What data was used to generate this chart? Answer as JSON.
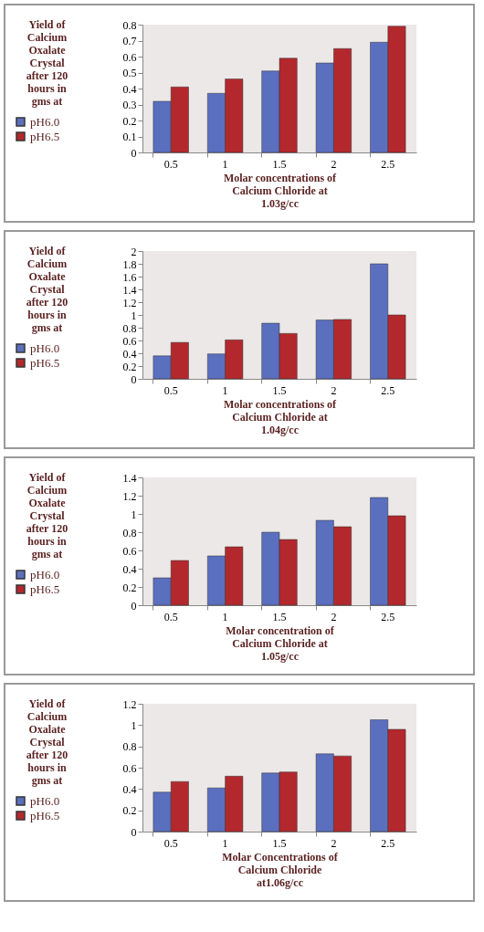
{
  "chart_data": [
    {
      "type": "bar",
      "ylabel": "Yield of Calcium Oxalate Crystal after 120 hours in gms at",
      "xlabel": "Molar concentrations of Calcium Chloride at 1.03g/cc",
      "categories": [
        "0.5",
        "1",
        "1.5",
        "2",
        "2.5"
      ],
      "ylim": [
        0,
        0.8
      ],
      "yticks": [
        0,
        0.1,
        0.2,
        0.3,
        0.4,
        0.5,
        0.6,
        0.7,
        0.8
      ],
      "legend": "left",
      "series": [
        {
          "name": "pH6.0",
          "color": "#5b6fbf",
          "values": [
            0.32,
            0.37,
            0.51,
            0.56,
            0.69
          ]
        },
        {
          "name": "pH6.5",
          "color": "#b3282d",
          "values": [
            0.41,
            0.46,
            0.59,
            0.65,
            0.79
          ]
        }
      ]
    },
    {
      "type": "bar",
      "ylabel": "Yield of Calcium Oxalate Crystal after 120 hours in gms at",
      "xlabel": "Molar concentrations of Calcium Chloride at 1.04g/cc",
      "categories": [
        "0.5",
        "1",
        "1.5",
        "2",
        "2.5"
      ],
      "ylim": [
        0,
        2
      ],
      "yticks": [
        0,
        0.2,
        0.4,
        0.6,
        0.8,
        1,
        1.2,
        1.4,
        1.6,
        1.8,
        2
      ],
      "legend": "left",
      "series": [
        {
          "name": "pH6.0",
          "color": "#5b6fbf",
          "values": [
            0.36,
            0.39,
            0.87,
            0.92,
            1.8
          ]
        },
        {
          "name": "pH6.5",
          "color": "#b3282d",
          "values": [
            0.57,
            0.61,
            0.71,
            0.93,
            1.0
          ]
        }
      ]
    },
    {
      "type": "bar",
      "ylabel": "Yield of Calcium Oxalate Crystal after 120 hours in gms at",
      "xlabel": "Molar concentration of Calcium Chloride at 1.05g/cc",
      "categories": [
        "0.5",
        "1",
        "1.5",
        "2",
        "2.5"
      ],
      "ylim": [
        0,
        1.4
      ],
      "yticks": [
        0,
        0.2,
        0.4,
        0.6,
        0.8,
        1,
        1.2,
        1.4
      ],
      "legend": "left",
      "series": [
        {
          "name": "pH6.0",
          "color": "#5b6fbf",
          "values": [
            0.3,
            0.54,
            0.8,
            0.93,
            1.18
          ]
        },
        {
          "name": "pH6.5",
          "color": "#b3282d",
          "values": [
            0.49,
            0.64,
            0.72,
            0.86,
            0.98
          ]
        }
      ]
    },
    {
      "type": "bar",
      "ylabel": "Yield of Calcium Oxalate Crystal after 120 hours in gms at",
      "xlabel": "Molar Concentrations of Calcium Chloride at1.06g/cc",
      "categories": [
        "0.5",
        "1",
        "1.5",
        "2",
        "2.5"
      ],
      "ylim": [
        0,
        1.2
      ],
      "yticks": [
        0,
        0.2,
        0.4,
        0.6,
        0.8,
        1,
        1.2
      ],
      "legend": "left",
      "series": [
        {
          "name": "pH6.0",
          "color": "#5b6fbf",
          "values": [
            0.37,
            0.41,
            0.55,
            0.73,
            1.05
          ]
        },
        {
          "name": "pH6.5",
          "color": "#b3282d",
          "values": [
            0.47,
            0.52,
            0.56,
            0.71,
            0.96
          ]
        }
      ]
    }
  ]
}
